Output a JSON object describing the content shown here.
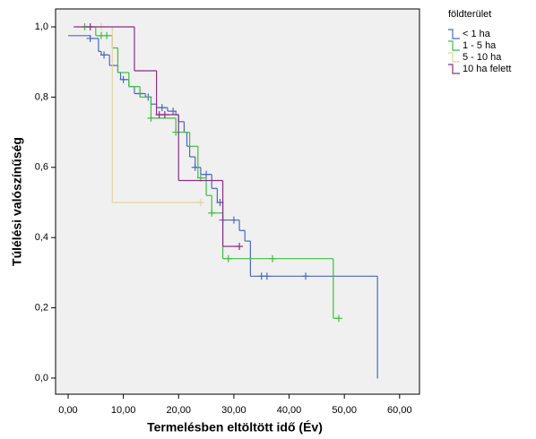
{
  "chart_data": {
    "type": "survival-step",
    "x_label": "Termelésben eltöltött idő (Év)",
    "y_label": "Túlélési valószínűség",
    "legend_title": "földterület",
    "xlim": [
      -2.27,
      63.6
    ],
    "ylim": [
      -0.046,
      1.051
    ],
    "xticks": [
      {
        "value": 0,
        "label": "0,00"
      },
      {
        "value": 10,
        "label": "10,00"
      },
      {
        "value": 20,
        "label": "20,00"
      },
      {
        "value": 30,
        "label": "30,00"
      },
      {
        "value": 40,
        "label": "40,00"
      },
      {
        "value": 50,
        "label": "50,00"
      },
      {
        "value": 60,
        "label": "60,00"
      }
    ],
    "yticks": [
      {
        "value": 0,
        "label": "0,0"
      },
      {
        "value": 0.2,
        "label": "0,2"
      },
      {
        "value": 0.4,
        "label": "0,4"
      },
      {
        "value": 0.6,
        "label": "0,6"
      },
      {
        "value": 0.8,
        "label": "0,8"
      },
      {
        "value": 1,
        "label": "1,0"
      }
    ],
    "series": [
      {
        "name": "< 1 ha",
        "color": "#4a68c0",
        "x": [
          0,
          4,
          5.5,
          6,
          7.5,
          9,
          9.5,
          11,
          12,
          14,
          15,
          16,
          18,
          19.5,
          20,
          21,
          21.5,
          22,
          23,
          24,
          26,
          27,
          28,
          31,
          32,
          33,
          56
        ],
        "values": [
          0.975,
          0.967,
          0.93,
          0.92,
          0.89,
          0.87,
          0.85,
          0.83,
          0.81,
          0.8,
          0.78,
          0.77,
          0.76,
          0.75,
          0.73,
          0.7,
          0.66,
          0.63,
          0.6,
          0.58,
          0.54,
          0.5,
          0.45,
          0.42,
          0.39,
          0.29,
          0
        ],
        "censored_x": [
          4,
          6.5,
          10,
          13,
          14.5,
          17,
          19,
          23,
          25,
          27.5,
          28,
          30,
          35,
          36,
          43
        ],
        "censored_values": [
          0.967,
          0.92,
          0.85,
          0.81,
          0.8,
          0.77,
          0.76,
          0.6,
          0.58,
          0.5,
          0.45,
          0.45,
          0.29,
          0.29,
          0.29
        ]
      },
      {
        "name": "1 - 5 ha",
        "color": "#3fbf3f",
        "x": [
          3,
          5,
          8,
          9,
          11,
          13,
          15,
          19.5,
          22,
          23.5,
          25,
          26,
          28,
          48,
          49
        ],
        "values": [
          1,
          0.975,
          0.94,
          0.87,
          0.83,
          0.8,
          0.74,
          0.7,
          0.66,
          0.57,
          0.52,
          0.47,
          0.34,
          0.17,
          0.17
        ],
        "censored_x": [
          3,
          6,
          7,
          15,
          19.5,
          24,
          26,
          29,
          37,
          49
        ],
        "censored_values": [
          1,
          0.975,
          0.975,
          0.74,
          0.7,
          0.57,
          0.47,
          0.34,
          0.34,
          0.17
        ]
      },
      {
        "name": "5 - 10 ha",
        "color": "#e0d6a0",
        "x": [
          5,
          8,
          24
        ],
        "values": [
          1,
          0.5,
          0.5
        ],
        "censored_x": [
          6,
          24
        ],
        "censored_values": [
          1,
          0.5
        ]
      },
      {
        "name": "10 ha felett",
        "color": "#8a2e8a",
        "x": [
          1,
          12,
          16,
          20,
          28,
          31
        ],
        "values": [
          1,
          0.875,
          0.75,
          0.5625,
          0.375,
          0.375
        ],
        "censored_x": [
          4,
          16.5,
          17.5,
          31
        ],
        "censored_values": [
          1,
          0.75,
          0.75,
          0.375
        ]
      }
    ]
  }
}
